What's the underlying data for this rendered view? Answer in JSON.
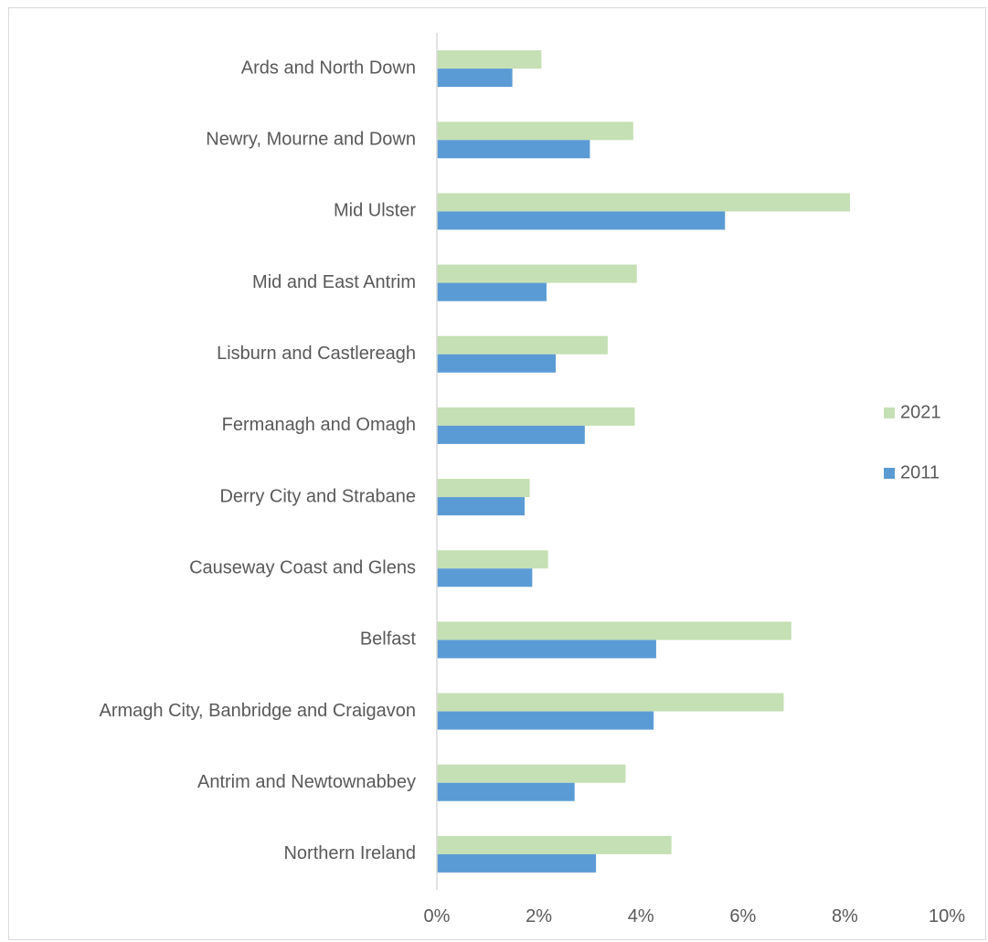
{
  "chart_data": {
    "type": "bar",
    "orientation": "horizontal",
    "categories": [
      "Ards and North Down",
      "Newry, Mourne and Down",
      "Mid Ulster",
      "Mid and East Antrim",
      "Lisburn and Castlereagh",
      "Fermanagh and Omagh",
      "Derry City and Strabane",
      "Causeway Coast and Glens",
      "Belfast",
      "Armagh City, Banbridge and Craigavon",
      "Antrim and Newtownabbey",
      "Northern Ireland"
    ],
    "series": [
      {
        "name": "2021",
        "color": "#c5e0b4",
        "values": [
          2.05,
          3.85,
          8.1,
          3.92,
          3.35,
          3.88,
          1.82,
          2.18,
          6.95,
          6.8,
          3.7,
          4.6
        ]
      },
      {
        "name": "2011",
        "color": "#5b9bd5",
        "values": [
          1.48,
          3.0,
          5.65,
          2.15,
          2.33,
          2.9,
          1.72,
          1.87,
          4.3,
          4.25,
          2.7,
          3.12
        ]
      }
    ],
    "xlim": [
      0,
      10
    ],
    "xticks": [
      "0%",
      "2%",
      "4%",
      "6%",
      "8%",
      "10%"
    ],
    "legend": {
      "position": "right",
      "entries": [
        {
          "label": "2021",
          "color": "#c5e0b4"
        },
        {
          "label": "2011",
          "color": "#5b9bd5"
        }
      ]
    },
    "grid": false,
    "axis_color": "#d9d9d9"
  }
}
